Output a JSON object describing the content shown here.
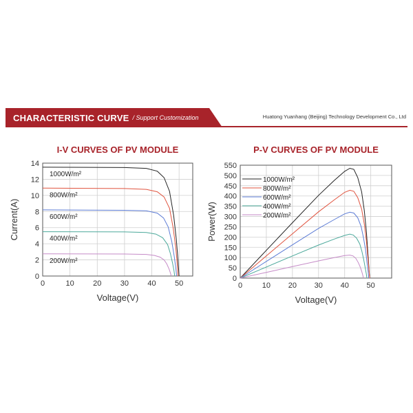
{
  "banner": {
    "title": "CHARACTERISTIC CURVE",
    "subtitle": "/ Support Customization",
    "company": "Huatong Yuanhang (Beijing) Technology Development Co., Ltd"
  },
  "colors": {
    "accent": "#a8232a",
    "grid": "#cfcfcf"
  },
  "chart_data": [
    {
      "type": "line",
      "title": "I-V CURVES OF PV MODULE",
      "xlabel": "Voltage(V)",
      "ylabel": "Current(A)",
      "xlim": [
        0,
        55
      ],
      "ylim": [
        0,
        14
      ],
      "xticks": [
        0,
        10,
        20,
        30,
        40,
        50
      ],
      "yticks": [
        0,
        2,
        4,
        6,
        8,
        10,
        12,
        14
      ],
      "series": [
        {
          "name": "1000W/m²",
          "color": "#222222",
          "points": [
            [
              0,
              13.5
            ],
            [
              30,
              13.45
            ],
            [
              38,
              13.35
            ],
            [
              42,
              13.0
            ],
            [
              44.5,
              12.2
            ],
            [
              46.5,
              10.5
            ],
            [
              48,
              7.5
            ],
            [
              49,
              4.5
            ],
            [
              49.6,
              2
            ],
            [
              50,
              0
            ]
          ]
        },
        {
          "name": "800W/m²",
          "color": "#e0533e",
          "points": [
            [
              0,
              10.9
            ],
            [
              30,
              10.85
            ],
            [
              38,
              10.75
            ],
            [
              42,
              10.45
            ],
            [
              44.5,
              9.8
            ],
            [
              46.5,
              8.4
            ],
            [
              47.8,
              6
            ],
            [
              48.8,
              3.5
            ],
            [
              49.3,
              1.5
            ],
            [
              49.6,
              0
            ]
          ]
        },
        {
          "name": "600W/m²",
          "color": "#5b7bd5",
          "points": [
            [
              0,
              8.2
            ],
            [
              30,
              8.15
            ],
            [
              38,
              8.08
            ],
            [
              42,
              7.8
            ],
            [
              44.3,
              7.2
            ],
            [
              46,
              6.1
            ],
            [
              47.3,
              4.3
            ],
            [
              48.2,
              2.5
            ],
            [
              48.8,
              1.0
            ],
            [
              49.1,
              0
            ]
          ]
        },
        {
          "name": "400W/m²",
          "color": "#4aa89a",
          "points": [
            [
              0,
              5.5
            ],
            [
              30,
              5.47
            ],
            [
              38,
              5.4
            ],
            [
              41.5,
              5.2
            ],
            [
              44,
              4.75
            ],
            [
              45.8,
              3.9
            ],
            [
              46.8,
              2.8
            ],
            [
              47.6,
              1.6
            ],
            [
              48.1,
              0.7
            ],
            [
              48.4,
              0
            ]
          ]
        },
        {
          "name": "200W/m²",
          "color": "#c58ac7",
          "points": [
            [
              0,
              2.75
            ],
            [
              30,
              2.73
            ],
            [
              38,
              2.68
            ],
            [
              41,
              2.55
            ],
            [
              43,
              2.35
            ],
            [
              44.5,
              2.0
            ],
            [
              45.5,
              1.5
            ],
            [
              46.3,
              0.9
            ],
            [
              46.8,
              0.4
            ],
            [
              47.1,
              0
            ]
          ]
        }
      ]
    },
    {
      "type": "line",
      "title": "P-V CURVES OF PV MODULE",
      "xlabel": "Voltage(V)",
      "ylabel": "Power(W)",
      "xlim": [
        0,
        58
      ],
      "ylim": [
        0,
        550
      ],
      "xticks": [
        0,
        10,
        20,
        30,
        40,
        50
      ],
      "yticks": [
        0,
        50,
        100,
        150,
        200,
        250,
        300,
        350,
        400,
        450,
        500,
        550
      ],
      "series": [
        {
          "name": "1000W/m²",
          "color": "#222222",
          "points": [
            [
              0,
              0
            ],
            [
              10,
              135
            ],
            [
              20,
              270
            ],
            [
              30,
              403
            ],
            [
              36,
              476
            ],
            [
              40,
              520
            ],
            [
              42,
              535
            ],
            [
              43.5,
              530
            ],
            [
              45,
              490
            ],
            [
              46.5,
              420
            ],
            [
              47.5,
              330
            ],
            [
              48.3,
              230
            ],
            [
              48.9,
              120
            ],
            [
              49.3,
              50
            ],
            [
              49.6,
              0
            ]
          ]
        },
        {
          "name": "800W/m²",
          "color": "#e0533e",
          "points": [
            [
              0,
              0
            ],
            [
              10,
              108
            ],
            [
              20,
              216
            ],
            [
              30,
              323
            ],
            [
              36,
              381
            ],
            [
              40,
              418
            ],
            [
              42,
              428
            ],
            [
              43.5,
              423
            ],
            [
              45,
              392
            ],
            [
              46.5,
              336
            ],
            [
              47.5,
              264
            ],
            [
              48.3,
              184
            ],
            [
              48.9,
              96
            ],
            [
              49.3,
              40
            ],
            [
              49.6,
              0
            ]
          ]
        },
        {
          "name": "600W/m²",
          "color": "#5b7bd5",
          "points": [
            [
              0,
              0
            ],
            [
              10,
              81
            ],
            [
              20,
              162
            ],
            [
              30,
              242
            ],
            [
              36,
              285
            ],
            [
              40,
              313
            ],
            [
              42,
              321
            ],
            [
              43.5,
              317
            ],
            [
              45,
              294
            ],
            [
              46.3,
              252
            ],
            [
              47.2,
              198
            ],
            [
              48,
              138
            ],
            [
              48.6,
              72
            ],
            [
              49,
              30
            ],
            [
              49.2,
              0
            ]
          ]
        },
        {
          "name": "400W/m²",
          "color": "#4aa89a",
          "points": [
            [
              0,
              0
            ],
            [
              10,
              54
            ],
            [
              20,
              108
            ],
            [
              30,
              161
            ],
            [
              36,
              190
            ],
            [
              40,
              208
            ],
            [
              42,
              214
            ],
            [
              43.3,
              210
            ],
            [
              44.6,
              194
            ],
            [
              45.8,
              166
            ],
            [
              46.6,
              130
            ],
            [
              47.3,
              90
            ],
            [
              47.9,
              48
            ],
            [
              48.3,
              20
            ],
            [
              48.5,
              0
            ]
          ]
        },
        {
          "name": "200W/m²",
          "color": "#c58ac7",
          "points": [
            [
              0,
              0
            ],
            [
              10,
              28
            ],
            [
              20,
              56
            ],
            [
              30,
              84
            ],
            [
              36,
              100
            ],
            [
              40,
              110
            ],
            [
              42,
              112
            ],
            [
              43.2,
              108
            ],
            [
              44.3,
              96
            ],
            [
              45.2,
              76
            ],
            [
              45.9,
              56
            ],
            [
              46.5,
              34
            ],
            [
              46.9,
              16
            ],
            [
              47.2,
              0
            ]
          ]
        }
      ]
    }
  ]
}
